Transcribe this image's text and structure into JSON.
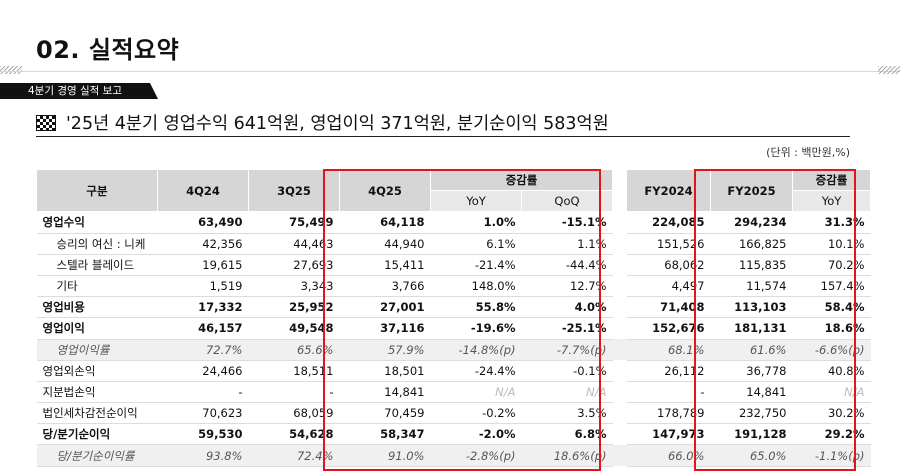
{
  "page_title": "02. 실적요약",
  "section_tag": "4분기 경영 실적 보고",
  "headline": "'25년 4분기 영업수익 641억원, 영업이익 371억원, 분기순이익 583억원",
  "unit": "(단위 : 백만원,%)",
  "table": {
    "headers": {
      "category": "구분",
      "q4_24": "4Q24",
      "q3_25": "3Q25",
      "q4_25": "4Q25",
      "change": "증감률",
      "yoy": "YoY",
      "qoq": "QoQ",
      "fy2024": "FY2024",
      "fy2025": "FY2025",
      "fy_change": "증감률",
      "fy_yoy": "YoY"
    },
    "rows": [
      {
        "label": "영업수익",
        "style": "bold",
        "indent": false,
        "cells": [
          "63,490",
          "75,499",
          "64,118",
          "1.0%",
          "-15.1%",
          "224,085",
          "294,234",
          "31.3%"
        ]
      },
      {
        "label": "승리의 여신 : 니케",
        "style": "normal",
        "indent": true,
        "cells": [
          "42,356",
          "44,463",
          "44,940",
          "6.1%",
          "1.1%",
          "151,526",
          "166,825",
          "10.1%"
        ]
      },
      {
        "label": "스텔라 블레이드",
        "style": "normal",
        "indent": true,
        "cells": [
          "19,615",
          "27,693",
          "15,411",
          "-21.4%",
          "-44.4%",
          "68,062",
          "115,835",
          "70.2%"
        ]
      },
      {
        "label": "기타",
        "style": "normal",
        "indent": true,
        "cells": [
          "1,519",
          "3,343",
          "3,766",
          "148.0%",
          "12.7%",
          "4,497",
          "11,574",
          "157.4%"
        ]
      },
      {
        "label": "영업비용",
        "style": "bold",
        "indent": false,
        "cells": [
          "17,332",
          "25,952",
          "27,001",
          "55.8%",
          "4.0%",
          "71,408",
          "113,103",
          "58.4%"
        ]
      },
      {
        "label": "영업이익",
        "style": "bold",
        "indent": false,
        "cells": [
          "46,157",
          "49,548",
          "37,116",
          "-19.6%",
          "-25.1%",
          "152,676",
          "181,131",
          "18.6%"
        ]
      },
      {
        "label": "영업이익률",
        "style": "ratio",
        "indent": true,
        "cells": [
          "72.7%",
          "65.6%",
          "57.9%",
          "-14.8%(p)",
          "-7.7%(p)",
          "68.1%",
          "61.6%",
          "-6.6%(p)"
        ]
      },
      {
        "label": "영업외손익",
        "style": "normal",
        "indent": false,
        "cells": [
          "24,466",
          "18,511",
          "18,501",
          "-24.4%",
          "-0.1%",
          "26,112",
          "36,778",
          "40.8%"
        ]
      },
      {
        "label": "지분법손익",
        "style": "normal",
        "indent": false,
        "cells": [
          "-",
          "-",
          "14,841",
          "N/A",
          "N/A",
          "-",
          "14,841",
          "N/A"
        ]
      },
      {
        "label": "법인세차감전순이익",
        "style": "normal",
        "indent": false,
        "cells": [
          "70,623",
          "68,059",
          "70,459",
          "-0.2%",
          "3.5%",
          "178,789",
          "232,750",
          "30.2%"
        ]
      },
      {
        "label": "당/분기순이익",
        "style": "bold",
        "indent": false,
        "cells": [
          "59,530",
          "54,628",
          "58,347",
          "-2.0%",
          "6.8%",
          "147,973",
          "191,128",
          "29.2%"
        ]
      },
      {
        "label": "당/분기순이익률",
        "style": "ratio",
        "indent": true,
        "cells": [
          "93.8%",
          "72.4%",
          "91.0%",
          "-2.8%(p)",
          "18.6%(p)",
          "66.0%",
          "65.0%",
          "-1.1%(p)"
        ]
      }
    ]
  },
  "colors": {
    "highlight_border": "#e0161e",
    "header_bg": "#d6d6d6",
    "ratio_row_bg": "#f0f0f0"
  }
}
